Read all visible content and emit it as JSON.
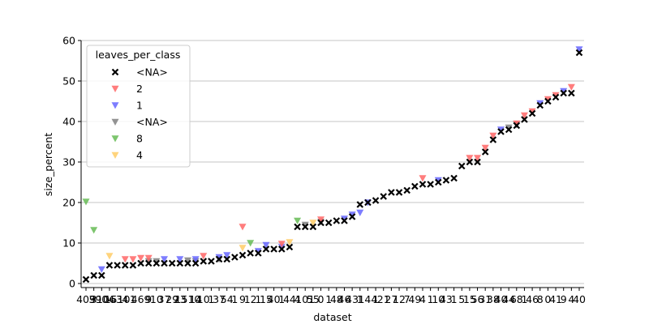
{
  "chart_data": {
    "type": "scatter",
    "xlabel": "dataset",
    "ylabel": "size_percent",
    "ylim": [
      -1,
      60
    ],
    "yticks": [
      0,
      10,
      20,
      30,
      40,
      50,
      60
    ],
    "grid": "horizontal",
    "legend": {
      "title": "leaves_per_class",
      "placement": "top-left",
      "entries": [
        "<NA>",
        "2",
        "1",
        "<NA>",
        "8",
        "4"
      ]
    },
    "series": [
      {
        "name": "<NA>",
        "marker": "x",
        "color": "#000000",
        "points": [
          [
            0,
            1
          ],
          [
            1,
            2
          ],
          [
            2,
            2
          ],
          [
            3,
            4.5
          ],
          [
            4,
            4.5
          ],
          [
            5,
            4.5
          ],
          [
            6,
            4.5
          ],
          [
            7,
            5
          ],
          [
            8,
            5
          ],
          [
            9,
            5
          ],
          [
            10,
            5
          ],
          [
            11,
            5
          ],
          [
            12,
            5
          ],
          [
            13,
            5
          ],
          [
            14,
            5
          ],
          [
            15,
            5.5
          ],
          [
            16,
            5.5
          ],
          [
            17,
            6
          ],
          [
            18,
            6
          ],
          [
            19,
            6.5
          ],
          [
            20,
            7
          ],
          [
            21,
            7.5
          ],
          [
            22,
            7.5
          ],
          [
            23,
            8.5
          ],
          [
            24,
            8.5
          ],
          [
            25,
            8.5
          ],
          [
            26,
            9
          ],
          [
            27,
            14
          ],
          [
            28,
            14
          ],
          [
            29,
            14
          ],
          [
            30,
            15
          ],
          [
            31,
            15
          ],
          [
            32,
            15.5
          ],
          [
            33,
            15.5
          ],
          [
            34,
            16.5
          ],
          [
            35,
            19.5
          ],
          [
            36,
            20
          ],
          [
            37,
            20.5
          ],
          [
            38,
            21.5
          ],
          [
            39,
            22.5
          ],
          [
            40,
            22.5
          ],
          [
            41,
            23
          ],
          [
            42,
            24
          ],
          [
            43,
            24.5
          ],
          [
            44,
            24.5
          ],
          [
            45,
            25
          ],
          [
            46,
            25.5
          ],
          [
            47,
            26
          ],
          [
            48,
            29
          ],
          [
            49,
            30
          ],
          [
            50,
            30
          ],
          [
            51,
            32.5
          ],
          [
            52,
            35.5
          ],
          [
            53,
            37.5
          ],
          [
            54,
            38
          ],
          [
            55,
            39
          ],
          [
            56,
            40.5
          ],
          [
            57,
            42
          ],
          [
            58,
            44
          ],
          [
            59,
            45
          ],
          [
            60,
            46
          ],
          [
            61,
            47
          ],
          [
            62,
            47
          ],
          [
            63,
            57
          ]
        ]
      },
      {
        "name": "2",
        "marker": "triangle-down",
        "color": "#ff6666",
        "points": [
          [
            5,
            6
          ],
          [
            6,
            6
          ],
          [
            7,
            6.3
          ],
          [
            8,
            6.3
          ],
          [
            15,
            6.8
          ],
          [
            20,
            14
          ],
          [
            25,
            9.8
          ],
          [
            30,
            15.8
          ],
          [
            43,
            26
          ],
          [
            49,
            31
          ],
          [
            50,
            31
          ],
          [
            51,
            33.5
          ],
          [
            52,
            36.5
          ],
          [
            55,
            39.5
          ],
          [
            56,
            41.5
          ],
          [
            57,
            42.5
          ],
          [
            59,
            45.5
          ],
          [
            60,
            46.5
          ],
          [
            62,
            48.5
          ]
        ]
      },
      {
        "name": "1",
        "marker": "triangle-down",
        "color": "#6666ff",
        "points": [
          [
            2,
            3.5
          ],
          [
            10,
            6
          ],
          [
            12,
            6
          ],
          [
            14,
            6
          ],
          [
            17,
            6.5
          ],
          [
            18,
            7
          ],
          [
            22,
            8
          ],
          [
            23,
            9.5
          ],
          [
            25,
            9
          ],
          [
            33,
            16
          ],
          [
            34,
            17
          ],
          [
            35,
            17.5
          ],
          [
            36,
            20
          ],
          [
            45,
            25.5
          ],
          [
            53,
            38
          ],
          [
            58,
            44.5
          ],
          [
            61,
            47.5
          ],
          [
            63,
            57.8
          ]
        ]
      },
      {
        "name": "<NA>",
        "marker": "triangle-down",
        "color": "#808080",
        "points": [
          [
            8,
            5.5
          ],
          [
            9,
            5.5
          ],
          [
            13,
            5.7
          ],
          [
            14,
            5.5
          ],
          [
            17,
            6
          ],
          [
            28,
            14.5
          ],
          [
            30,
            15.2
          ],
          [
            54,
            38.5
          ],
          [
            55,
            39.2
          ]
        ]
      },
      {
        "name": "8",
        "marker": "triangle-down",
        "color": "#66bb55",
        "points": [
          [
            0,
            20.2
          ],
          [
            1,
            13.2
          ],
          [
            21,
            10
          ],
          [
            27,
            15.5
          ]
        ]
      },
      {
        "name": "4",
        "marker": "triangle-down",
        "color": "#ffcc66",
        "points": [
          [
            3,
            6.8
          ],
          [
            20,
            8.8
          ],
          [
            26,
            10.2
          ],
          [
            29,
            15
          ]
        ]
      }
    ],
    "xticks_visible": [
      "409",
      "3",
      "3904",
      "1063",
      "1510",
      "4",
      "1",
      "469",
      "9",
      "10",
      "37",
      "29",
      "23",
      "1510",
      "14",
      "10",
      "1",
      "37",
      "54",
      "1",
      "9",
      "12",
      "1",
      "15",
      "40",
      "1",
      "44",
      "4",
      "101",
      "55",
      "0",
      "1",
      "48",
      "46",
      "43",
      "1",
      "144",
      "1",
      "21",
      "27",
      "12",
      "7",
      "49",
      "4",
      "1",
      "10",
      "43",
      "1",
      "5",
      "15",
      "56",
      "31",
      "38",
      "40",
      "44",
      "68",
      "1",
      "46",
      "8",
      "0",
      "41",
      "9",
      "4",
      "40"
    ]
  }
}
